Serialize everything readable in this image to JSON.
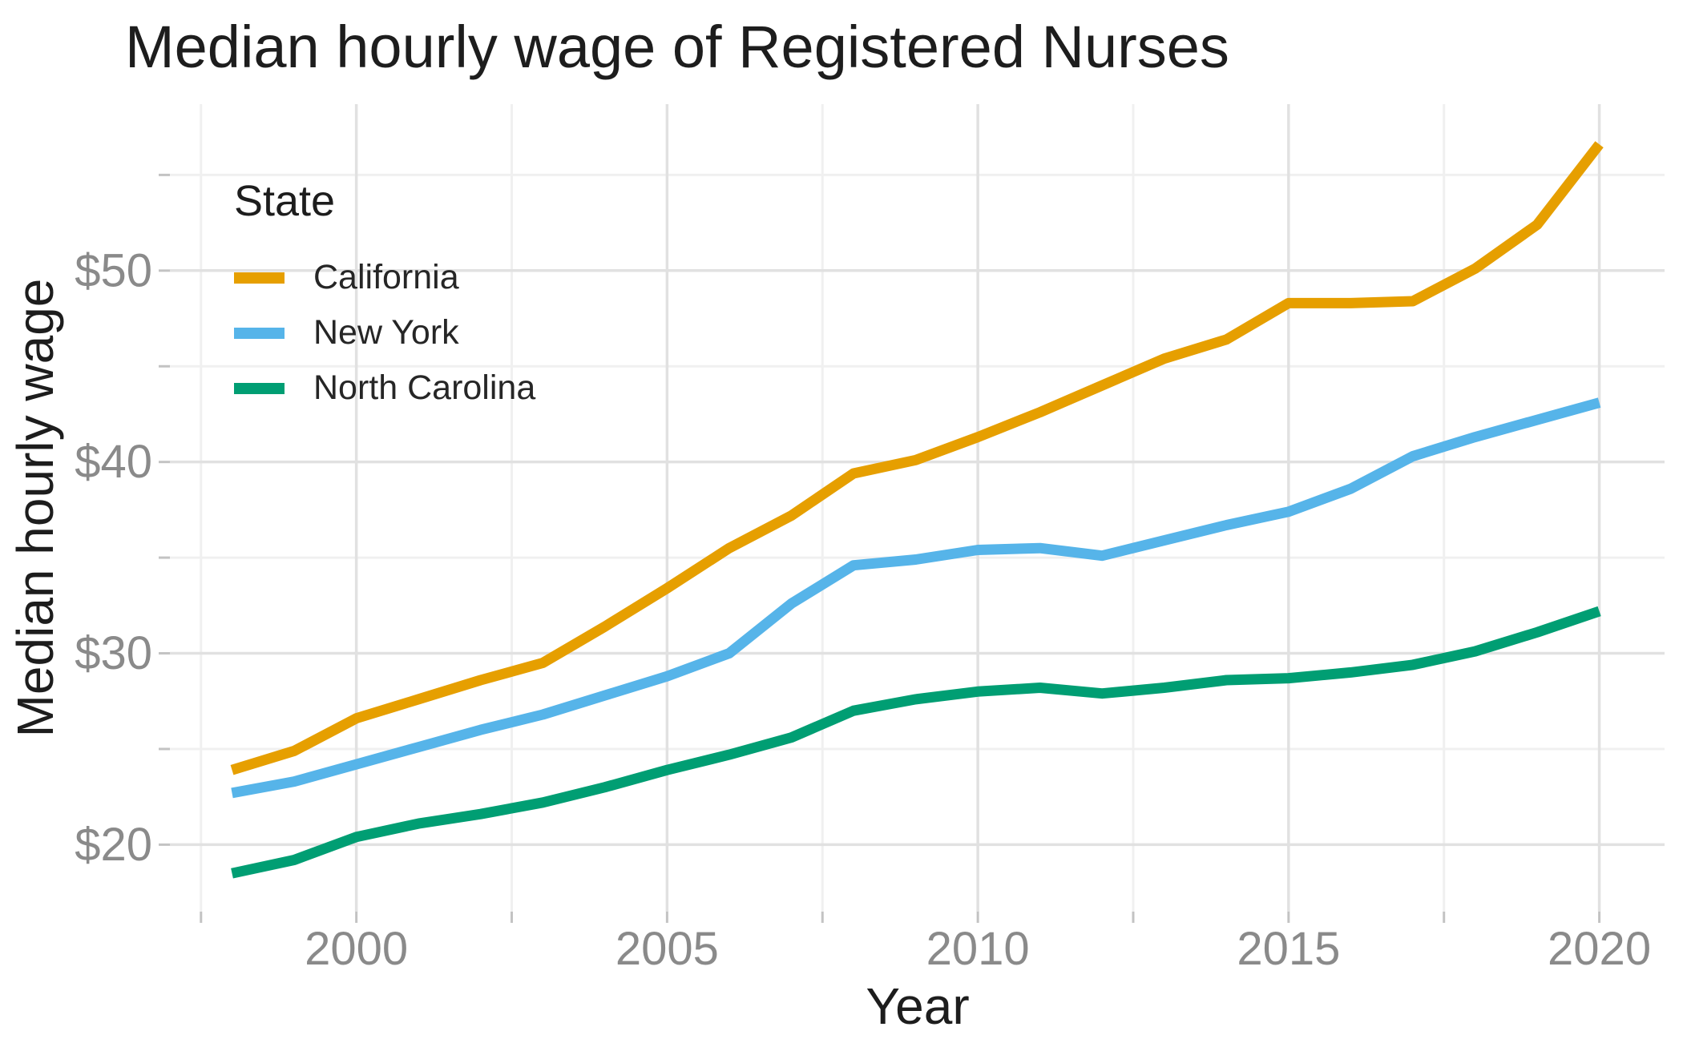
{
  "title": "Median hourly wage of Registered Nurses",
  "axes": {
    "x_label": "Year",
    "y_label": "Median hourly wage",
    "x_ticks": [
      {
        "v": 2000,
        "label": "2000"
      },
      {
        "v": 2005,
        "label": "2005"
      },
      {
        "v": 2010,
        "label": "2010"
      },
      {
        "v": 2015,
        "label": "2015"
      },
      {
        "v": 2020,
        "label": "2020"
      }
    ],
    "y_ticks": [
      {
        "v": 20,
        "label": "$20"
      },
      {
        "v": 30,
        "label": "$30"
      },
      {
        "v": 40,
        "label": "$40"
      },
      {
        "v": 50,
        "label": "$50"
      }
    ]
  },
  "legend": {
    "title": "State",
    "position": "inside-top-left",
    "entries": [
      {
        "label": "California",
        "color": "#E69F00"
      },
      {
        "label": "New York",
        "color": "#56B4E9"
      },
      {
        "label": "North Carolina",
        "color": "#009E73"
      }
    ]
  },
  "chart_data": {
    "type": "line",
    "title": "Median hourly wage of Registered Nurses",
    "xlabel": "Year",
    "ylabel": "Median hourly wage",
    "x": [
      1998,
      1999,
      2000,
      2001,
      2002,
      2003,
      2004,
      2005,
      2006,
      2007,
      2008,
      2009,
      2010,
      2011,
      2012,
      2013,
      2014,
      2015,
      2016,
      2017,
      2018,
      2019,
      2020
    ],
    "series": [
      {
        "name": "California",
        "color": "#E69F00",
        "values": [
          23.9,
          24.9,
          26.6,
          27.6,
          28.6,
          29.5,
          31.4,
          33.4,
          35.5,
          37.2,
          39.4,
          40.1,
          41.3,
          42.6,
          44.0,
          45.4,
          46.4,
          48.3,
          48.3,
          48.4,
          50.1,
          52.4,
          56.6
        ]
      },
      {
        "name": "New York",
        "color": "#56B4E9",
        "values": [
          22.7,
          23.3,
          24.2,
          25.1,
          26.0,
          26.8,
          27.8,
          28.8,
          30.0,
          32.6,
          34.6,
          34.9,
          35.4,
          35.5,
          35.1,
          35.9,
          36.7,
          37.4,
          38.6,
          40.3,
          41.3,
          42.2,
          43.1
        ]
      },
      {
        "name": "North Carolina",
        "color": "#009E73",
        "values": [
          18.5,
          19.2,
          20.4,
          21.1,
          21.6,
          22.2,
          23.0,
          23.9,
          24.7,
          25.6,
          27.0,
          27.6,
          28.0,
          28.2,
          27.9,
          28.2,
          28.6,
          28.7,
          29.0,
          29.4,
          30.1,
          31.1,
          32.2
        ]
      }
    ],
    "xlim": [
      1997.0,
      2021.05
    ],
    "ylim": [
      16.5,
      58.7
    ],
    "grid": {
      "x_major": [
        2000,
        2005,
        2010,
        2015,
        2020
      ],
      "x_minor": [
        1997.5,
        2002.5,
        2007.5,
        2012.5,
        2017.5
      ],
      "y_major": [
        20,
        30,
        40,
        50
      ],
      "y_minor": [
        25,
        35,
        45,
        55
      ]
    },
    "legend_position": "inside-top-left",
    "line_width": 13,
    "colors": {
      "grid_major": "#e1e1e1",
      "grid_minor": "#f0f0f0",
      "tick_mark": "#c3c3c3",
      "tick_text": "#8a8a8a",
      "title_text": "#1d1d1d"
    }
  }
}
